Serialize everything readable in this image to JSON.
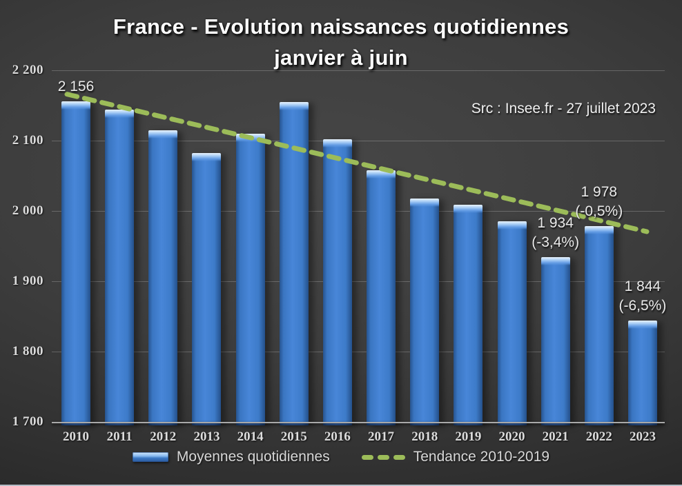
{
  "title": {
    "line1": "France - Evolution naissances quotidiennes",
    "line2": "janvier à juin"
  },
  "source": "Src : Insee.fr - 27 juillet 2023",
  "chart_data": {
    "type": "bar",
    "title": "France - Evolution naissances quotidiennes janvier à juin",
    "categories": [
      "2010",
      "2011",
      "2012",
      "2013",
      "2014",
      "2015",
      "2016",
      "2017",
      "2018",
      "2019",
      "2020",
      "2021",
      "2022",
      "2023"
    ],
    "series": [
      {
        "name": "Moyennes quotidiennes",
        "values": [
          2156,
          2144,
          2115,
          2082,
          2110,
          2155,
          2102,
          2058,
          2018,
          2009,
          1985,
          1934,
          1978,
          1844
        ]
      }
    ],
    "annotations": [
      {
        "year": "2010",
        "lines": [
          "2 156"
        ]
      },
      {
        "year": "2021",
        "lines": [
          "1 934",
          "(-3,4%)"
        ]
      },
      {
        "year": "2022",
        "lines": [
          "1 978",
          "(-0,5%)"
        ]
      },
      {
        "year": "2023",
        "lines": [
          "1 844",
          "(-6,5%)"
        ]
      }
    ],
    "trendline": {
      "name": "Tendance 2010-2019",
      "start_year": "2010",
      "end_year": "2023",
      "start_value": 2163,
      "end_value": 1972
    },
    "xlabel": "",
    "ylabel": "",
    "ylim": [
      1700,
      2200
    ],
    "yticks": [
      {
        "label": "2 200",
        "value": 2200
      },
      {
        "label": "2 100",
        "value": 2100
      },
      {
        "label": "2 000",
        "value": 2000
      },
      {
        "label": "1 900",
        "value": 1900
      },
      {
        "label": "1 800",
        "value": 1800
      },
      {
        "label": "1 700",
        "value": 1700
      }
    ],
    "grid": true,
    "legend_position": "bottom",
    "colors": {
      "bar_fill": "#4886d8",
      "bar_edge": "#27548f",
      "bar_highlight": "#eaf5fe",
      "trend": "#9cbc59",
      "background": "#3a3a3a",
      "grid": "rgba(255,255,255,0.22)",
      "text": "#dcdcdc",
      "title_text": "#ffffff"
    }
  }
}
